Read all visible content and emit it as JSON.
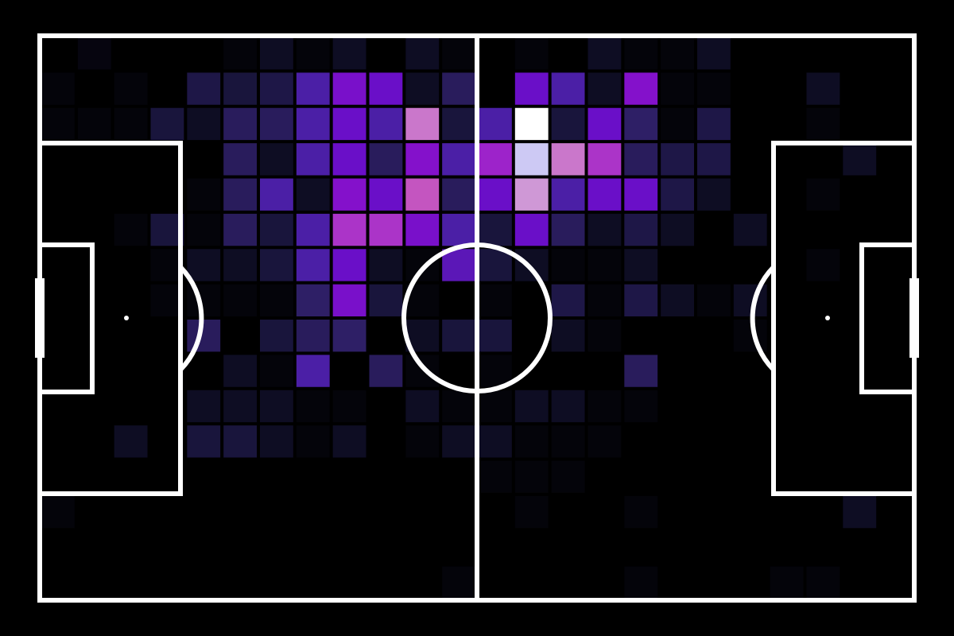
{
  "chart_data": {
    "type": "heatmap",
    "title": "",
    "xlabel": "",
    "ylabel": "",
    "grid": false,
    "legend": "none",
    "colors": {
      "background": "#000000",
      "pitch_lines": "#ffffff",
      "colormap": [
        "#000000",
        "#141232",
        "#2e1f66",
        "#4b1fa6",
        "#6a0fc8",
        "#8f12cc",
        "#ab34c8",
        "#c455c0",
        "#cf98d6",
        "#cdc9f4",
        "#ffffff"
      ]
    },
    "columns": 24,
    "rows": 16,
    "max_value": 10,
    "values": [
      [
        0,
        0.3,
        0,
        0,
        0,
        0.2,
        0.7,
        0.2,
        0.7,
        0,
        0.7,
        0.2,
        0,
        0.2,
        0,
        0.7,
        0.2,
        0.2,
        0.7,
        0,
        0,
        0,
        0,
        0
      ],
      [
        0.2,
        0,
        0.2,
        0,
        1.4,
        1.2,
        1.4,
        3,
        4.4,
        4,
        0.7,
        1.8,
        0,
        4,
        3,
        0.7,
        4.7,
        0.2,
        0.2,
        0,
        0,
        0.7,
        0,
        0
      ],
      [
        0.2,
        0.2,
        0.2,
        1.2,
        0.7,
        1.8,
        1.8,
        3,
        4,
        3,
        7.5,
        1.2,
        3,
        10,
        1.2,
        4,
        2,
        0.2,
        1.4,
        0,
        0,
        0.2,
        0,
        0
      ],
      [
        0,
        0,
        0,
        0,
        0,
        1.8,
        0.7,
        3,
        4,
        1.8,
        4.7,
        3,
        5.5,
        9,
        7.5,
        6,
        1.8,
        1.4,
        1.4,
        0,
        0,
        0,
        0.7,
        0
      ],
      [
        0,
        0,
        0,
        0,
        0.2,
        1.8,
        3,
        0.7,
        4.7,
        4,
        7,
        1.8,
        4,
        8,
        3,
        4,
        4,
        1.4,
        0.7,
        0,
        0,
        0.2,
        0,
        0
      ],
      [
        0,
        0,
        0.2,
        1.2,
        0.2,
        1.8,
        1.2,
        3,
        6,
        6,
        4.4,
        3,
        1.2,
        4,
        1.8,
        0.7,
        1.4,
        0.7,
        0,
        0.7,
        0,
        0,
        0,
        0
      ],
      [
        0,
        0,
        0,
        0.2,
        0.7,
        0.7,
        1.2,
        3,
        4,
        0.7,
        0.2,
        3.5,
        1.2,
        0.7,
        0.2,
        0.2,
        0.7,
        0,
        0,
        0,
        0,
        0.2,
        0,
        0
      ],
      [
        0,
        0,
        0,
        0.2,
        0.2,
        0.2,
        0.2,
        2,
        4.4,
        1.2,
        0.2,
        0,
        0.2,
        0,
        1.4,
        0.2,
        1.4,
        0.7,
        0.2,
        0.7,
        0,
        0,
        0,
        0
      ],
      [
        0,
        0,
        0,
        0,
        1.8,
        0,
        1.2,
        1.8,
        2,
        0,
        0.7,
        1.2,
        1.2,
        0,
        0.7,
        0.2,
        0,
        0,
        0,
        0.2,
        0,
        0,
        0,
        0
      ],
      [
        0,
        0,
        0,
        0,
        0,
        0.7,
        0.2,
        3,
        0,
        1.8,
        0.2,
        0,
        0.2,
        0,
        0,
        0,
        1.8,
        0,
        0,
        0,
        0,
        0,
        0,
        0
      ],
      [
        0,
        0,
        0,
        0,
        0.7,
        0.7,
        0.7,
        0.2,
        0.2,
        0,
        0.7,
        0.2,
        0.2,
        0.7,
        0.7,
        0.2,
        0.2,
        0,
        0,
        0,
        0,
        0,
        0,
        0
      ],
      [
        0,
        0,
        0.7,
        0,
        1.2,
        1.2,
        0.7,
        0.2,
        0.7,
        0,
        0.2,
        0.7,
        0.7,
        0.2,
        0.2,
        0.2,
        0,
        0,
        0,
        0,
        0,
        0,
        0,
        0
      ],
      [
        0,
        0,
        0,
        0,
        0,
        0,
        0,
        0,
        0,
        0,
        0,
        0,
        0.2,
        0.2,
        0.2,
        0,
        0,
        0,
        0,
        0,
        0,
        0,
        0,
        0
      ],
      [
        0.2,
        0,
        0,
        0,
        0,
        0,
        0,
        0,
        0,
        0,
        0,
        0,
        0,
        0.2,
        0,
        0,
        0.2,
        0,
        0,
        0,
        0,
        0,
        0.7,
        0
      ],
      [
        0,
        0,
        0,
        0,
        0,
        0,
        0,
        0,
        0,
        0,
        0,
        0,
        0,
        0,
        0,
        0,
        0,
        0,
        0,
        0,
        0,
        0,
        0,
        0
      ],
      [
        0,
        0,
        0,
        0,
        0,
        0,
        0,
        0,
        0,
        0,
        0,
        0.2,
        0,
        0,
        0,
        0,
        0.2,
        0,
        0,
        0,
        0.2,
        0.2,
        0,
        0
      ]
    ]
  }
}
